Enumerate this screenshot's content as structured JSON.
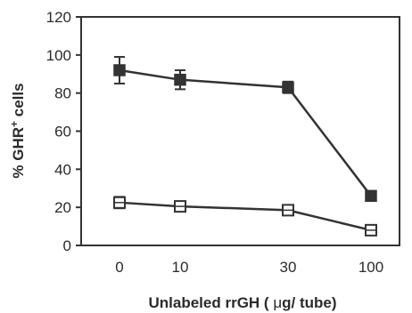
{
  "chart_data": {
    "type": "line",
    "categories": [
      "0",
      "10",
      "30",
      "100"
    ],
    "series": [
      {
        "marker": "filled-square",
        "values": [
          92,
          87,
          83,
          26
        ],
        "error": [
          7,
          5,
          3,
          0
        ]
      },
      {
        "marker": "open-square",
        "values": [
          22.5,
          20.5,
          18.5,
          8
        ],
        "error": [
          3,
          2,
          2,
          2
        ]
      }
    ],
    "ylim": [
      0,
      120
    ],
    "yticks": [
      0,
      20,
      40,
      60,
      80,
      100,
      120
    ],
    "xlabel_pre": "Unlabeled  rrGH ( ",
    "xlabel_mu": "μ",
    "xlabel_post": "g/ tube)",
    "ylabel_pre": "% GHR",
    "ylabel_sup": "+",
    "ylabel_post": " cells",
    "colors": {
      "series": "#333333",
      "axis": "#333333"
    }
  }
}
